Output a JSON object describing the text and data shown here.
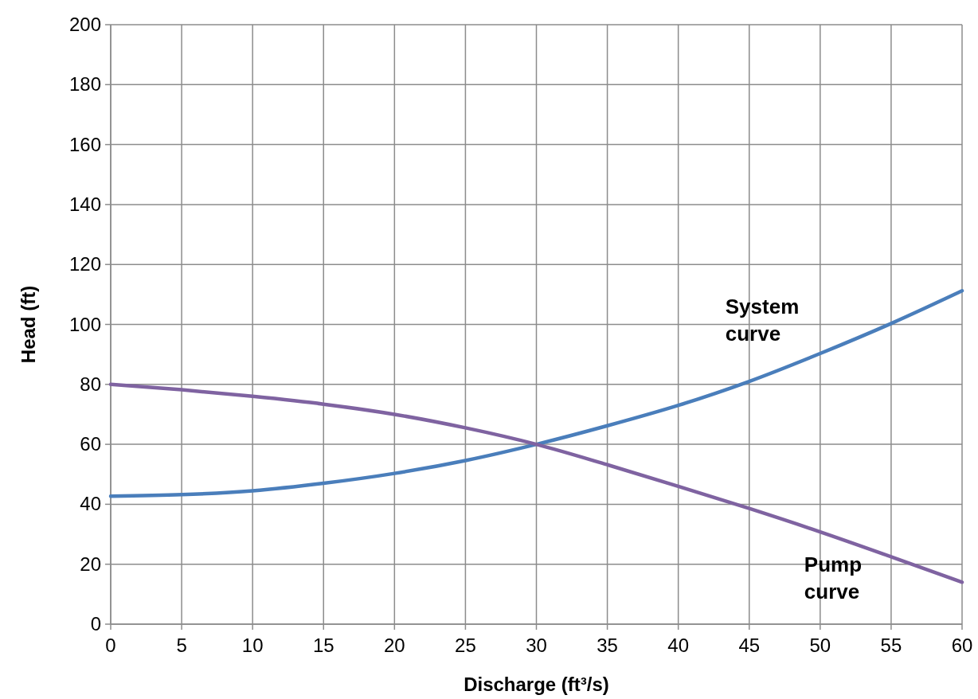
{
  "chart_data": {
    "type": "line",
    "xlabel": "Discharge (ft³/s)",
    "ylabel": "Head (ft)",
    "x": [
      0,
      5,
      10,
      15,
      20,
      25,
      30,
      35,
      40,
      45,
      50,
      55,
      60
    ],
    "xlim": [
      0,
      60
    ],
    "xticks": [
      0,
      5,
      10,
      15,
      20,
      25,
      30,
      35,
      40,
      45,
      50,
      55,
      60
    ],
    "ylim": [
      0,
      200
    ],
    "yticks": [
      0,
      20,
      40,
      60,
      80,
      100,
      120,
      140,
      160,
      180,
      200
    ],
    "grid": true,
    "marker": "none",
    "line_style": "solid",
    "series": [
      {
        "name": "System curve",
        "color": "#4a7ebb",
        "values": [
          42.7,
          43.2,
          44.5,
          47,
          50.3,
          54.6,
          60,
          66.2,
          73,
          81,
          90.3,
          100.3,
          111.2
        ]
      },
      {
        "name": "Pump curve",
        "color": "#7f63a1",
        "values": [
          80,
          78.2,
          76,
          73.4,
          70,
          65.5,
          60,
          53.2,
          46,
          38.6,
          30.8,
          22.5,
          14
        ]
      }
    ]
  }
}
